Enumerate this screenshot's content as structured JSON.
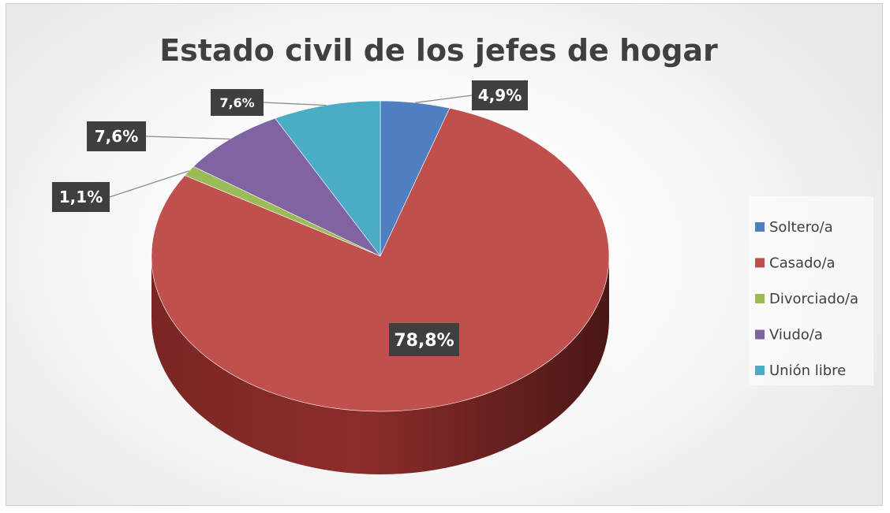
{
  "chart_data": {
    "type": "pie",
    "title": "Estado civil de los jefes de hogar",
    "categories": [
      "Soltero/a",
      "Casado/a",
      "Divorciado/a",
      "Viudo/a",
      "Unión libre"
    ],
    "values": [
      4.9,
      78.8,
      1.1,
      7.6,
      7.6
    ],
    "data_labels": [
      "4,9%",
      "78,8%",
      "1,1%",
      "7,6%",
      "7,6%"
    ],
    "colors": [
      "#4f7fc1",
      "#c0504d",
      "#9bbb59",
      "#8064a2",
      "#4bacc6"
    ],
    "legend_position": "right",
    "style": "3d"
  }
}
